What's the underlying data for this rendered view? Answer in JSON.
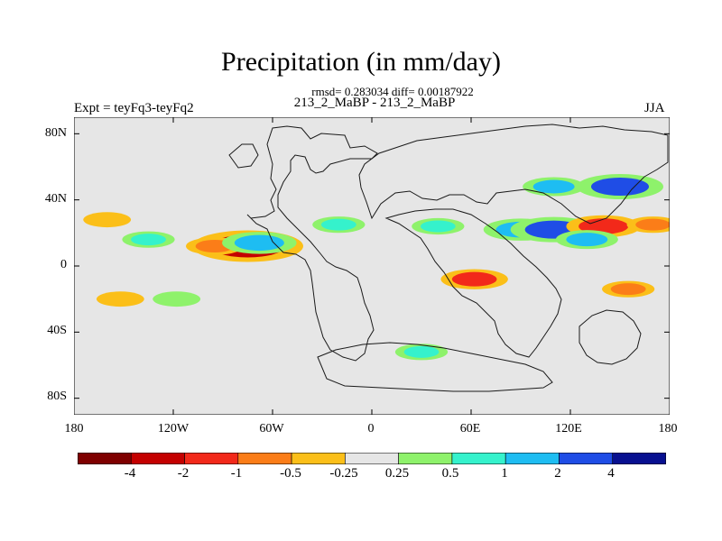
{
  "title": "Precipitation (in mm/day)",
  "stats": "rmsd= 0.283034 diff= 0.00187922",
  "case_name": "213_2_MaBP - 213_2_MaBP",
  "expt": "Expt = teyFq3-teyFq2",
  "season": "JJA",
  "colors": {
    "background": "#e6e6e6",
    "coastline": "#1a1a1a",
    "levels": [
      "#7f0000",
      "#c40000",
      "#f2291a",
      "#fb7d18",
      "#fbbf19",
      "#e6e6e6",
      "#8ef26b",
      "#35f2cc",
      "#1ebdf2",
      "#1f4de6",
      "#081090"
    ]
  },
  "chart_data": {
    "type": "heatmap",
    "title": "Precipitation (in mm/day)",
    "x_range": [
      -180,
      180
    ],
    "y_range": [
      -90,
      90
    ],
    "x_ticks": [
      "180",
      "120W",
      "60W",
      "0",
      "60E",
      "120E",
      "180"
    ],
    "y_ticks": [
      "80N",
      "40N",
      "0",
      "40S",
      "80S"
    ],
    "colorbar_labels": [
      "-4",
      "-2",
      "-1",
      "-0.5",
      "-0.25",
      "0.25",
      "0.5",
      "1",
      "2",
      "4"
    ],
    "anomalies": [
      {
        "lon": -75,
        "lat": 12,
        "value": -3.0
      },
      {
        "lon": -95,
        "lat": 12,
        "value": -0.8
      },
      {
        "lon": -135,
        "lat": 16,
        "value": 0.6
      },
      {
        "lon": -160,
        "lat": 28,
        "value": -0.4
      },
      {
        "lon": -118,
        "lat": -20,
        "value": 0.4
      },
      {
        "lon": -152,
        "lat": -20,
        "value": -0.4
      },
      {
        "lon": -68,
        "lat": 14,
        "value": 1.5
      },
      {
        "lon": 62,
        "lat": -8,
        "value": -1.2
      },
      {
        "lon": 90,
        "lat": 22,
        "value": 1.5
      },
      {
        "lon": 110,
        "lat": 22,
        "value": 2.0
      },
      {
        "lon": 140,
        "lat": 24,
        "value": -1.5
      },
      {
        "lon": 150,
        "lat": 48,
        "value": 2.0
      },
      {
        "lon": 110,
        "lat": 48,
        "value": 1.0
      },
      {
        "lon": 130,
        "lat": 16,
        "value": 1.0
      },
      {
        "lon": 40,
        "lat": 24,
        "value": 0.6
      },
      {
        "lon": 30,
        "lat": -52,
        "value": 0.6
      },
      {
        "lon": 155,
        "lat": -14,
        "value": -0.6
      },
      {
        "lon": 170,
        "lat": 25,
        "value": -0.6
      },
      {
        "lon": -20,
        "lat": 25,
        "value": 0.6
      }
    ]
  }
}
